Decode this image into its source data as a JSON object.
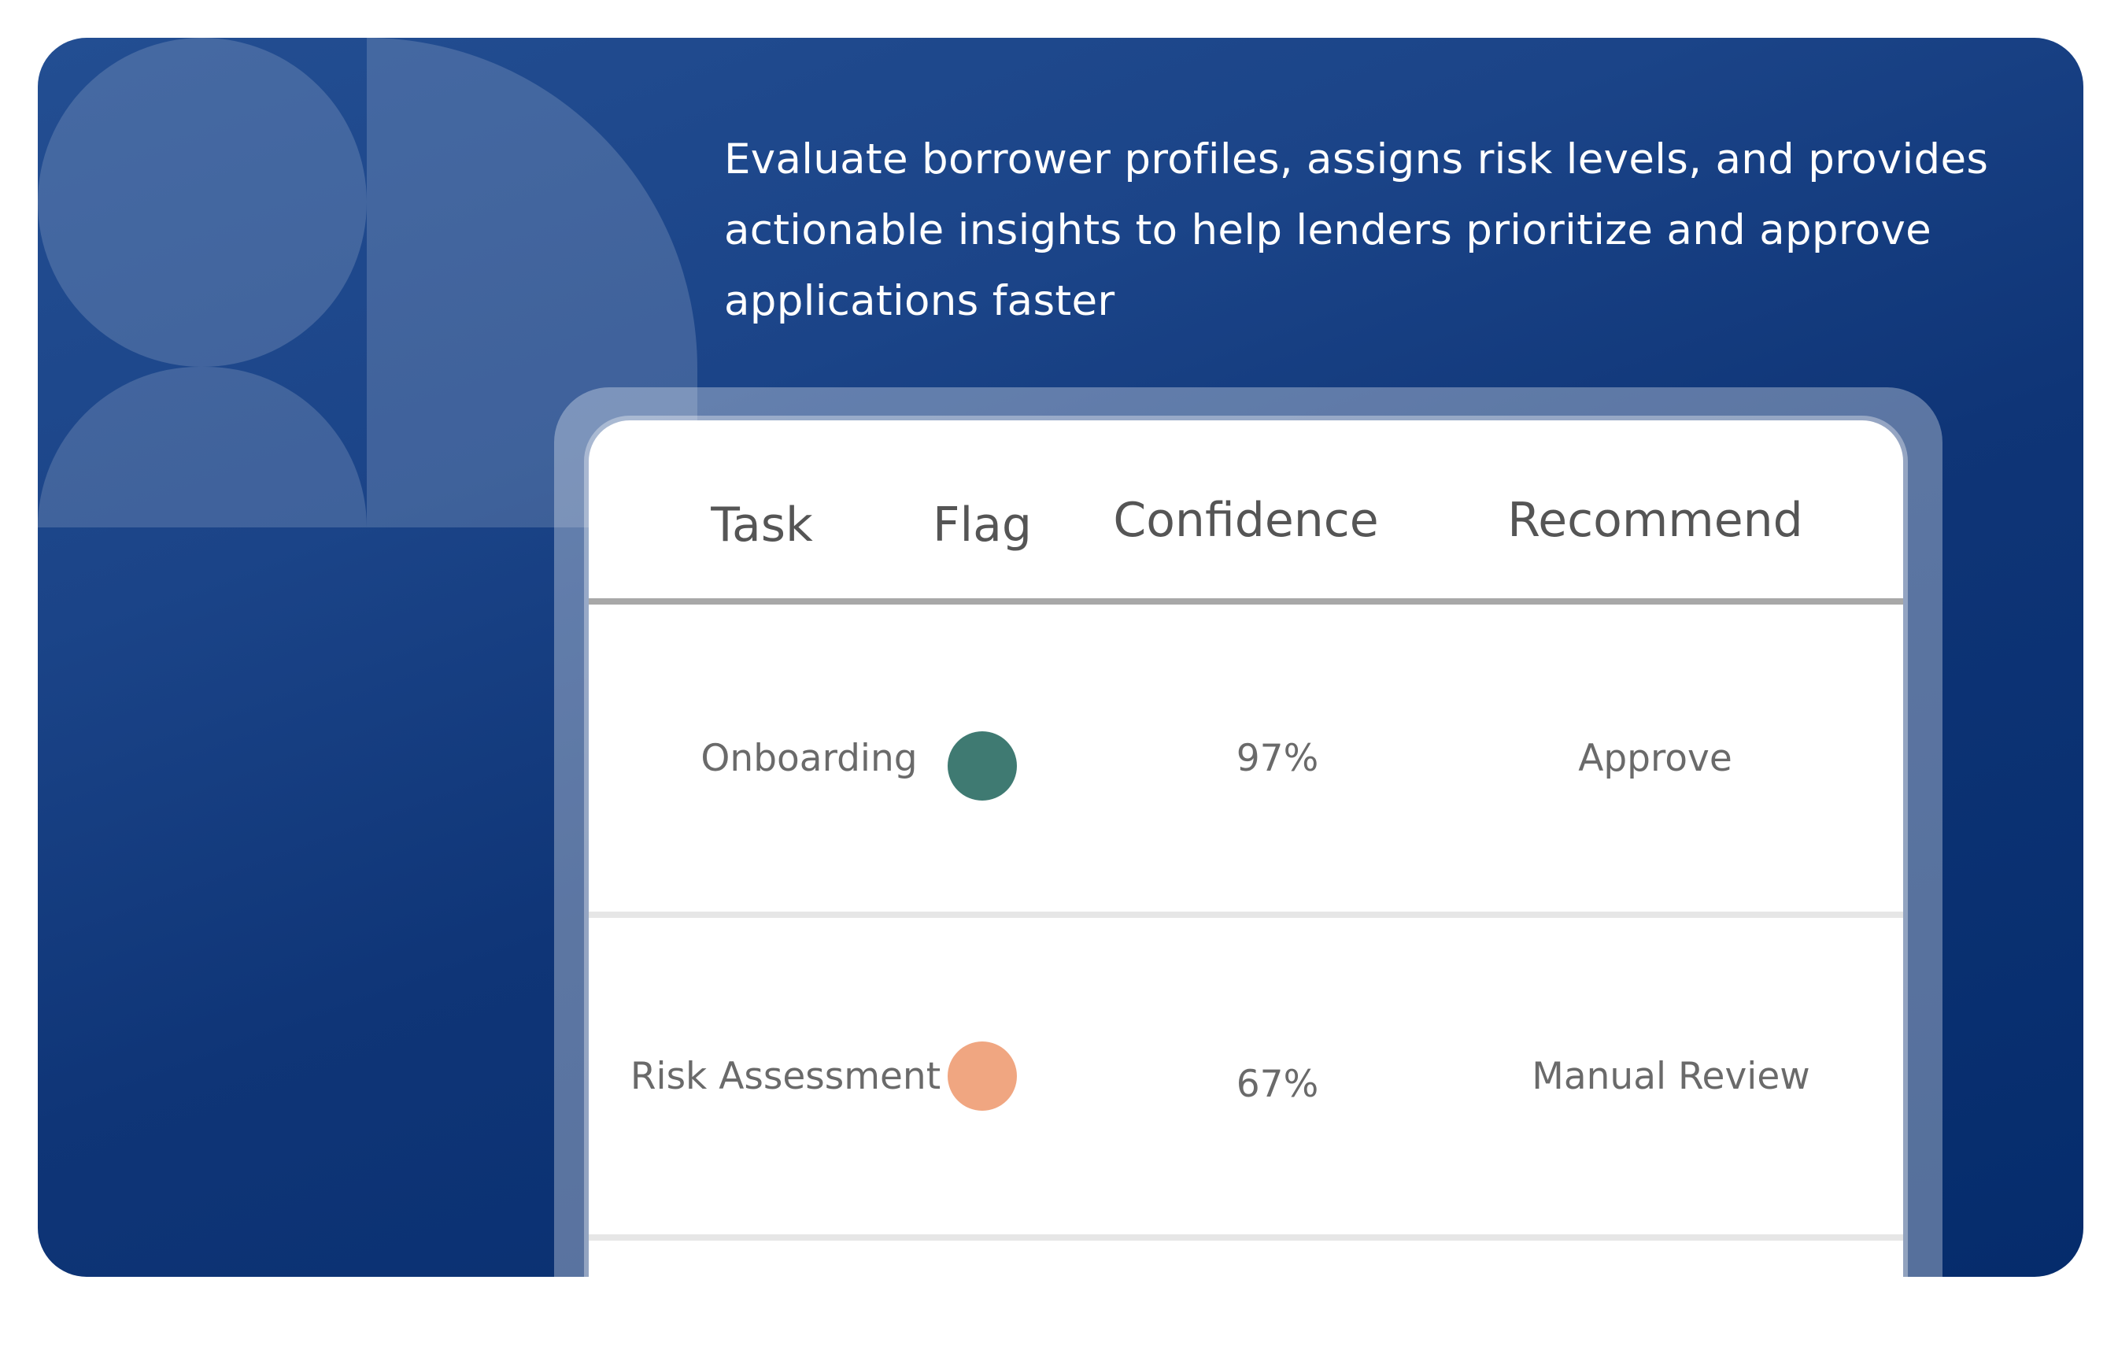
{
  "description": "Evaluate borrower profiles, assigns risk levels, and provides actionable insights to help lenders prioritize and approve applications faster",
  "table": {
    "columns": [
      "Task",
      "Flag",
      "Confidence",
      "Recommend"
    ],
    "rows": [
      {
        "task": "Onboarding",
        "flag_color": "#3f7a72",
        "confidence": "97%",
        "recommend": "Approve"
      },
      {
        "task": "Risk Assessment",
        "flag_color": "#f0a681",
        "confidence": "67%",
        "recommend": "Manual Review"
      }
    ]
  },
  "colors": {
    "background_top": "#234e92",
    "background_bottom": "#052c6c",
    "flag_ok": "#3f7a72",
    "flag_warning": "#f0a681"
  }
}
